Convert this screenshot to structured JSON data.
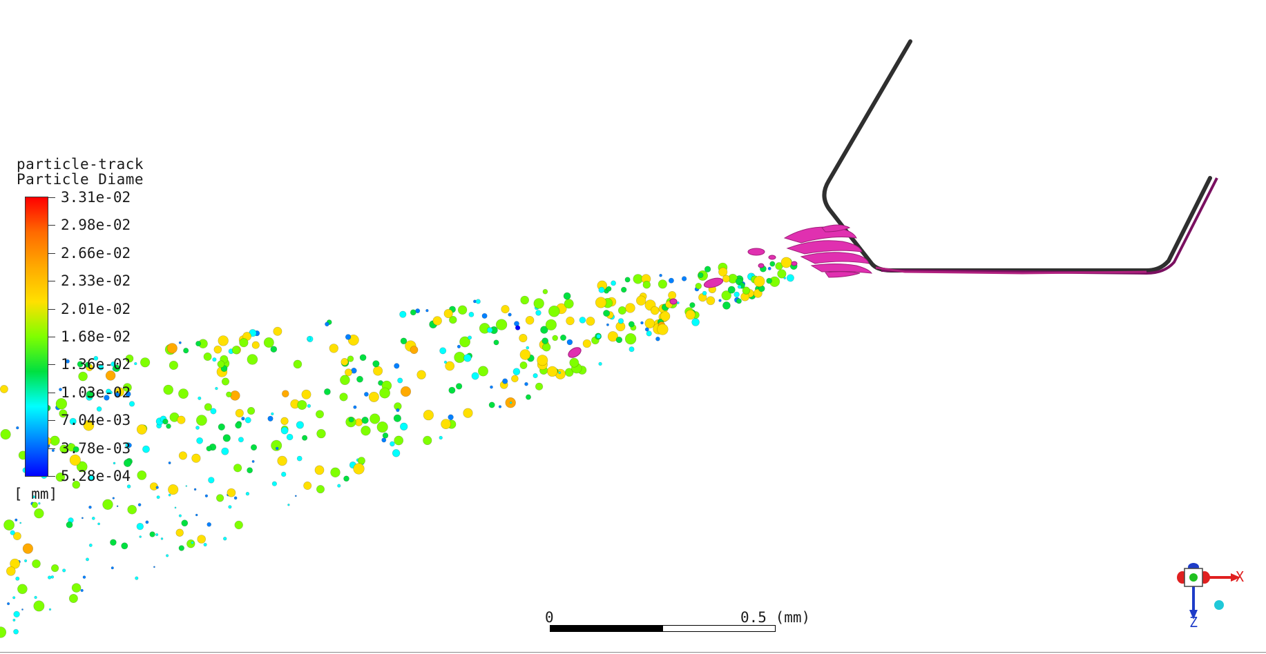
{
  "legend": {
    "title_line1": "particle-track",
    "title_line2": "Particle Diame",
    "unit": "[ mm]",
    "ticks": [
      "3.31e-02",
      "2.98e-02",
      "2.66e-02",
      "2.33e-02",
      "2.01e-02",
      "1.68e-02",
      "1.36e-02",
      "1.03e-02",
      "7.04e-03",
      "3.78e-03",
      "5.28e-04"
    ],
    "colormap": [
      "#ff0000",
      "#ff6a00",
      "#ffaa00",
      "#ffe000",
      "#7fff00",
      "#00e040",
      "#00ffff",
      "#0080ff",
      "#0000ff"
    ]
  },
  "scale_bar": {
    "start_label": "0",
    "end_label": "0.5 (mm)"
  },
  "triad": {
    "x_label": "X",
    "z_label": "Z",
    "x_color": "#e02020",
    "y_color": "#20c020",
    "z_color": "#1e3cc8"
  },
  "colors": {
    "nozzle_wall": "#333333",
    "liquid_jet": "#e030b0",
    "background": "#ffffff"
  }
}
